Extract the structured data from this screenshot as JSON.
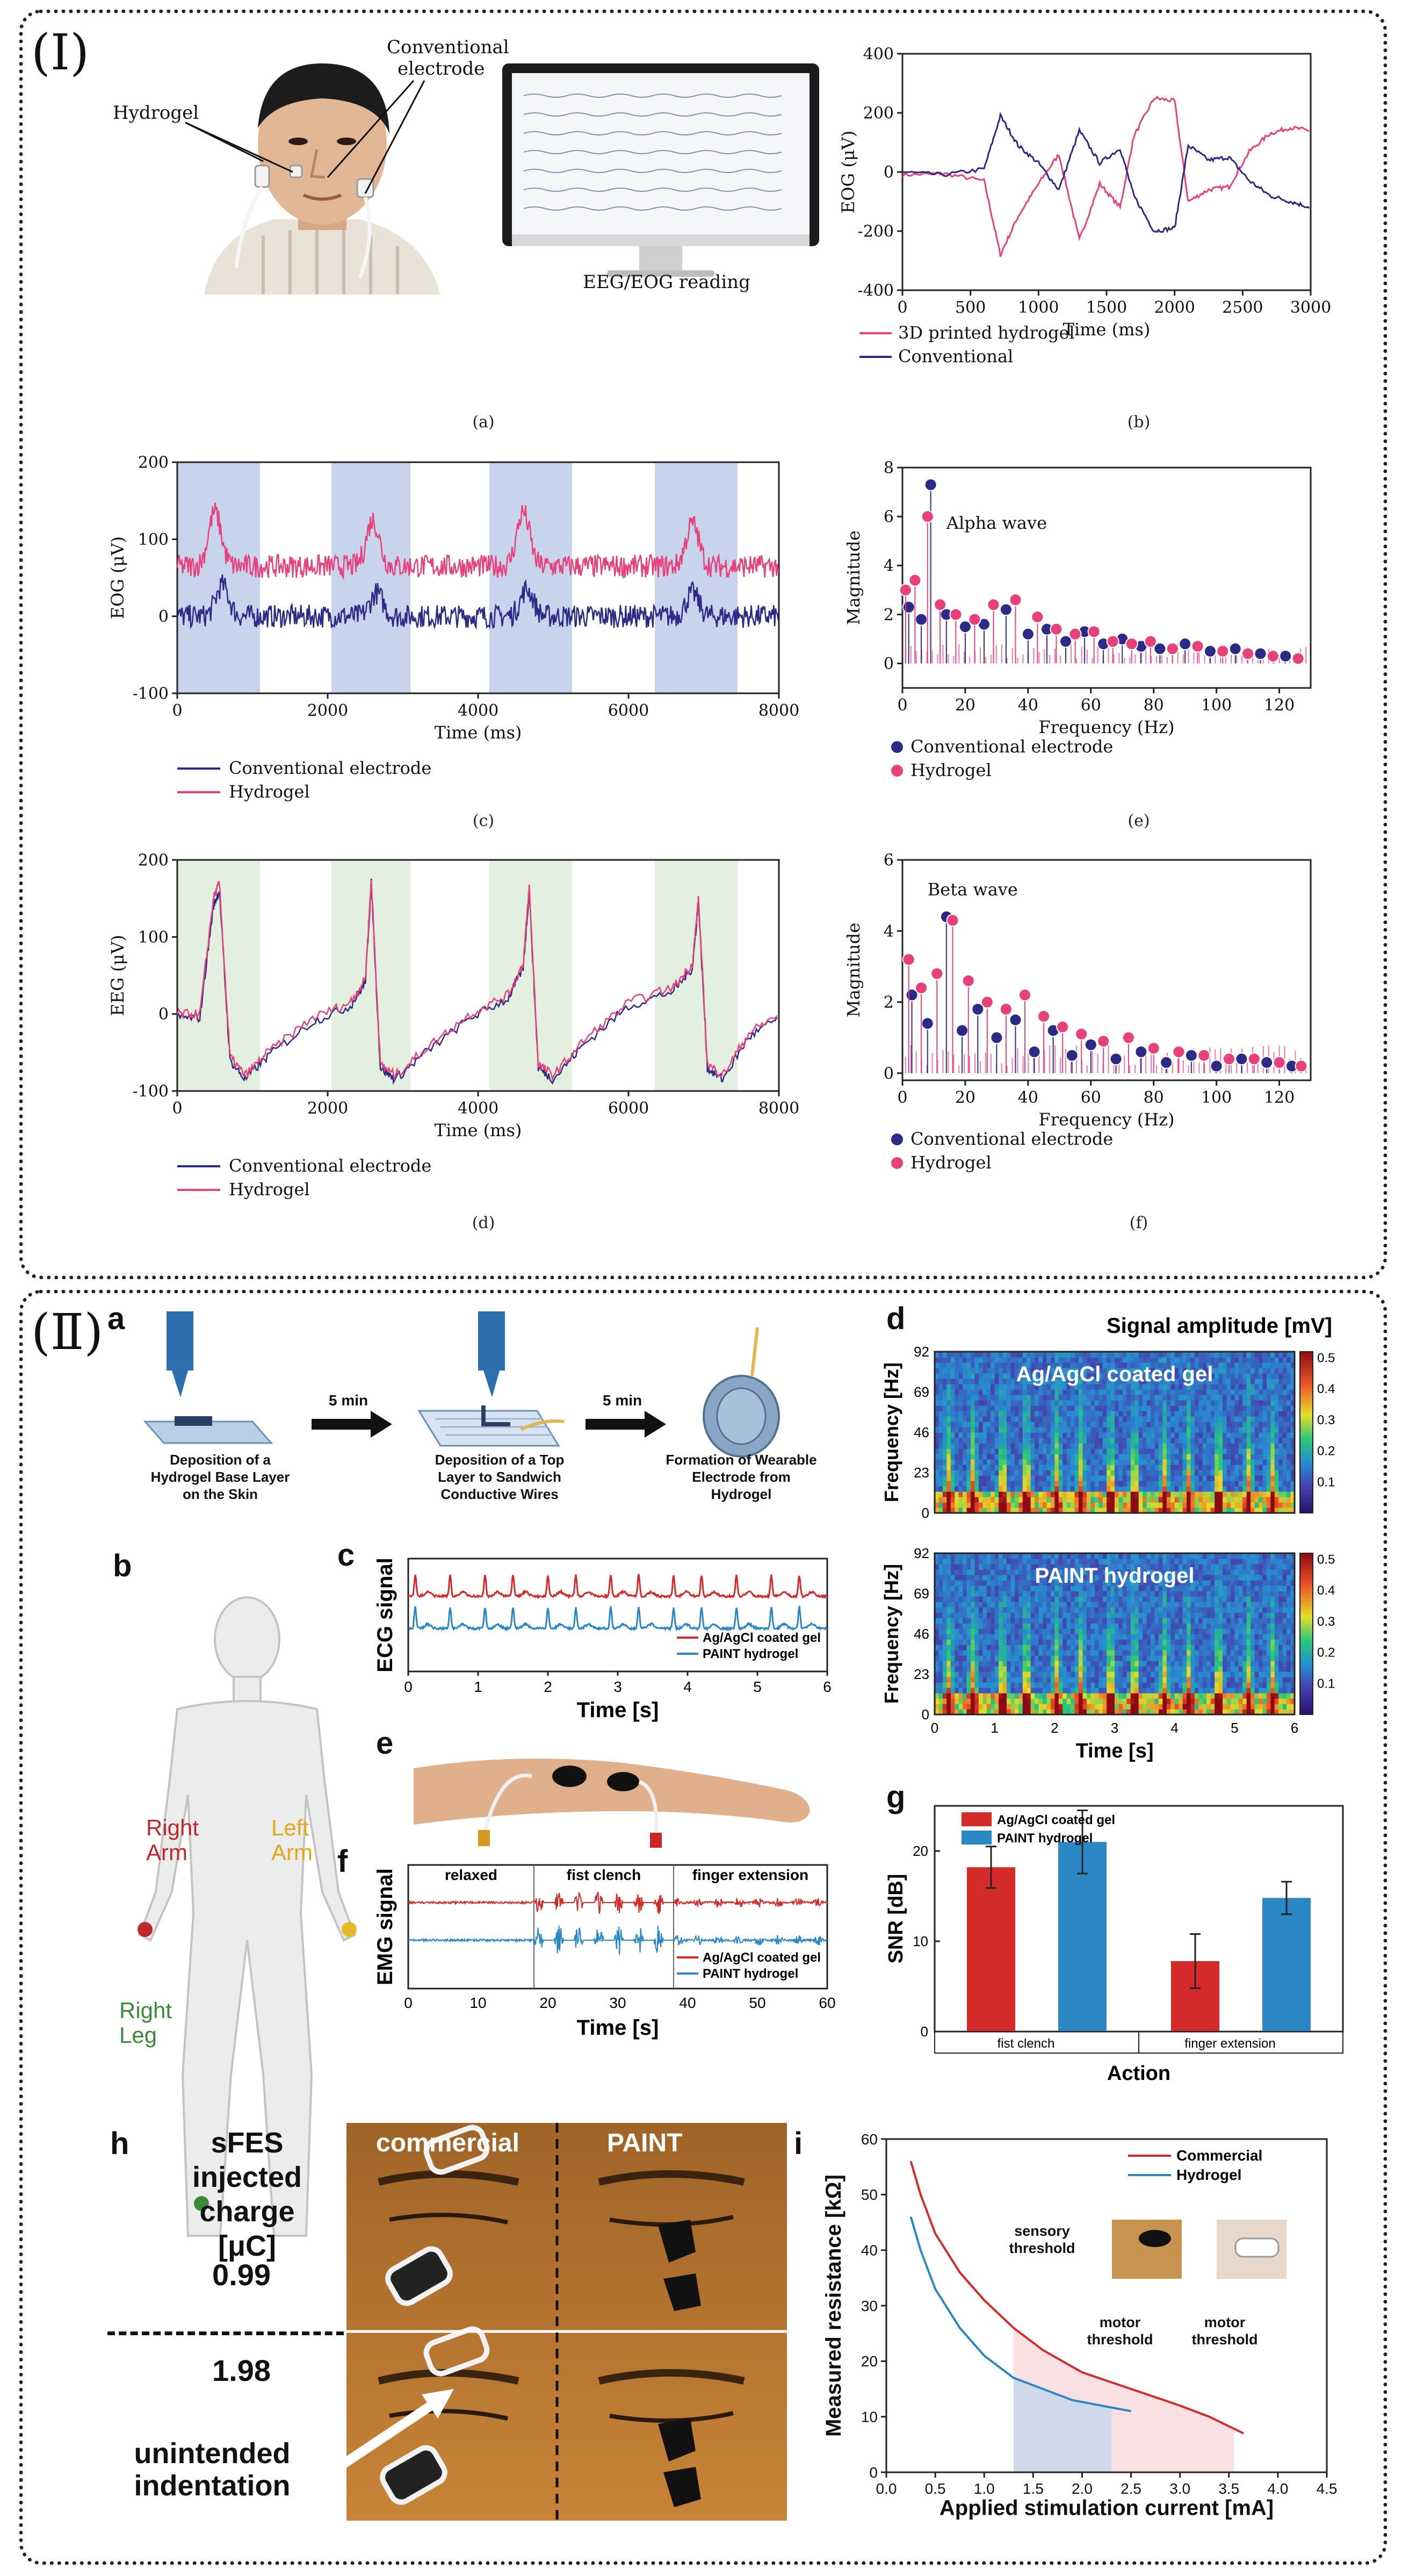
{
  "panel_I": {
    "label": "(Ⅰ)",
    "a": {
      "hydrogel_label": "Hydrogel",
      "conventional_label_1": "Conventional",
      "conventional_label_2": "electrode",
      "monitor_caption": "EEG/EOG reading",
      "caption": "(a)"
    },
    "b": {
      "caption": "(b)"
    },
    "c": {
      "caption": "(c)"
    },
    "d": {
      "caption": "(d)"
    },
    "e": {
      "caption": "(e)"
    },
    "f": {
      "caption": "(f)"
    }
  },
  "panel_II": {
    "label": "(Ⅱ)",
    "a": {
      "letter": "a",
      "arrow1": "5 min",
      "arrow2": "5 min",
      "step1": [
        "Deposition of a",
        "Hydrogel Base Layer",
        "on the Skin"
      ],
      "step2": [
        "Deposition of a Top",
        "Layer to Sandwich",
        "Conductive Wires"
      ],
      "step3": [
        "Formation of Wearable",
        "Electrode from",
        "Hydrogel"
      ]
    },
    "b": {
      "letter": "b",
      "right_arm": [
        "Right",
        "Arm"
      ],
      "left_arm": [
        "Left",
        "Arm"
      ],
      "right_leg": [
        "Right",
        "Leg"
      ]
    },
    "c": {
      "letter": "c"
    },
    "d": {
      "letter": "d",
      "colorbar_title": "Signal amplitude [mV]",
      "top_label": "Ag/AgCl coated gel",
      "bottom_label": "PAINT hydrogel"
    },
    "e": {
      "letter": "e"
    },
    "f": {
      "letter": "f",
      "segments": [
        "relaxed",
        "fist clench",
        "finger extension"
      ]
    },
    "g": {
      "letter": "g"
    },
    "h": {
      "letter": "h",
      "row_title": [
        "sFES",
        "injected",
        "charge [μC]"
      ],
      "col1": "commercial",
      "col2": "PAINT",
      "row1_value": "0.99",
      "row2_value": "1.98",
      "annotation": [
        "unintended",
        "indentation"
      ]
    },
    "i": {
      "letter": "i",
      "sensory": [
        "sensory",
        "threshold"
      ],
      "motor1": [
        "motor",
        "threshold"
      ],
      "motor2": [
        "motor",
        "threshold"
      ]
    }
  },
  "colors": {
    "conventional": "#2b2a86",
    "hydrogel": "#e8407a",
    "agagcl": "#d42a2a",
    "paint": "#2b86c4",
    "blue_band": "#c8d3ec",
    "green_band": "#e3f0e0"
  },
  "chart_data": [
    {
      "id": "I-b",
      "type": "line",
      "xlabel": "Time (ms)",
      "ylabel": "EOG (μV)",
      "xlim": [
        0,
        3000
      ],
      "ylim": [
        -400,
        400
      ],
      "xticks": [
        0,
        500,
        1000,
        1500,
        2000,
        2500,
        3000
      ],
      "yticks": [
        -400,
        -200,
        0,
        200,
        400
      ],
      "legend": [
        "3D printed hydrogel",
        "Conventional"
      ],
      "series": [
        {
          "name": "3D printed hydrogel",
          "x": [
            0,
            300,
            600,
            720,
            850,
            1000,
            1150,
            1300,
            1450,
            1600,
            1700,
            1850,
            2000,
            2100,
            2250,
            2400,
            2550,
            2700,
            2850,
            3000
          ],
          "y": [
            -10,
            -5,
            -30,
            -280,
            -150,
            -40,
            60,
            -230,
            -40,
            -120,
            120,
            250,
            240,
            -100,
            -60,
            -50,
            70,
            130,
            150,
            140
          ]
        },
        {
          "name": "Conventional",
          "x": [
            0,
            300,
            600,
            720,
            850,
            1000,
            1150,
            1300,
            1450,
            1600,
            1700,
            1850,
            2000,
            2100,
            2250,
            2400,
            2550,
            2700,
            2850,
            3000
          ],
          "y": [
            0,
            -10,
            10,
            190,
            90,
            30,
            -60,
            140,
            30,
            80,
            -80,
            -200,
            -190,
            90,
            40,
            50,
            -30,
            -80,
            -100,
            -120
          ]
        }
      ]
    },
    {
      "id": "I-c",
      "type": "line",
      "xlabel": "Time (ms)",
      "ylabel": "EOG (μV)",
      "xlim": [
        0,
        8000
      ],
      "ylim": [
        -100,
        200
      ],
      "xticks": [
        0,
        2000,
        4000,
        6000,
        8000
      ],
      "yticks": [
        -100,
        0,
        100,
        200
      ],
      "bands": [
        [
          0,
          1100
        ],
        [
          2050,
          3100
        ],
        [
          4150,
          5250
        ],
        [
          6350,
          7450
        ]
      ],
      "legend": [
        "Conventional electrode",
        "Hydrogel"
      ],
      "series": [
        {
          "name": "Conventional electrode",
          "baseline": 0,
          "peaks": [
            [
              600,
              40
            ],
            [
              2650,
              30
            ],
            [
              4650,
              35
            ],
            [
              6850,
              30
            ]
          ]
        },
        {
          "name": "Hydrogel",
          "baseline": 65,
          "peaks": [
            [
              500,
              70
            ],
            [
              2600,
              60
            ],
            [
              4600,
              70
            ],
            [
              6850,
              55
            ]
          ]
        }
      ]
    },
    {
      "id": "I-d",
      "type": "line",
      "xlabel": "Time (ms)",
      "ylabel": "EEG (μV)",
      "xlim": [
        0,
        8000
      ],
      "ylim": [
        -100,
        200
      ],
      "xticks": [
        0,
        2000,
        4000,
        6000,
        8000
      ],
      "yticks": [
        -100,
        0,
        100,
        200
      ],
      "bands": [
        [
          0,
          1100
        ],
        [
          2050,
          3100
        ],
        [
          4150,
          5250
        ],
        [
          6350,
          7450
        ]
      ],
      "legend": [
        "Conventional electrode",
        "Hydrogel"
      ],
      "series": [
        {
          "name": "Conventional electrode",
          "x": [
            0,
            300,
            480,
            560,
            700,
            900,
            1200,
            1800,
            2300,
            2500,
            2580,
            2700,
            2900,
            3300,
            3900,
            4400,
            4600,
            4680,
            4800,
            5000,
            5400,
            6000,
            6600,
            6850,
            6930,
            7050,
            7250,
            7600,
            8000
          ],
          "y": [
            -5,
            -5,
            140,
            160,
            -60,
            -85,
            -55,
            -10,
            10,
            40,
            170,
            -70,
            -85,
            -50,
            -5,
            20,
            60,
            160,
            -70,
            -85,
            -40,
            10,
            30,
            60,
            145,
            -70,
            -85,
            -30,
            -5
          ]
        },
        {
          "name": "Hydrogel",
          "x": [
            0,
            300,
            480,
            560,
            700,
            900,
            1200,
            1800,
            2300,
            2500,
            2580,
            2700,
            2900,
            3300,
            3900,
            4400,
            4600,
            4680,
            4800,
            5000,
            5400,
            6000,
            6600,
            6850,
            6930,
            7050,
            7250,
            7600,
            8000
          ],
          "y": [
            0,
            0,
            150,
            170,
            -55,
            -80,
            -50,
            -5,
            15,
            45,
            175,
            -65,
            -80,
            -45,
            0,
            25,
            65,
            165,
            -65,
            -80,
            -35,
            15,
            35,
            65,
            150,
            -65,
            -80,
            -25,
            0
          ]
        }
      ]
    },
    {
      "id": "I-e",
      "type": "scatter",
      "xlabel": "Frequency (Hz)",
      "ylabel": "Magnitude",
      "xlim": [
        0,
        130
      ],
      "ylim": [
        -1,
        8
      ],
      "xticks": [
        0,
        20,
        40,
        60,
        80,
        100,
        120
      ],
      "yticks": [
        0,
        2,
        4,
        6,
        8
      ],
      "annotation": "Alpha wave",
      "legend": [
        "Conventional electrode",
        "Hydrogel"
      ],
      "series": [
        {
          "name": "Conventional electrode",
          "x": [
            2,
            6,
            9,
            14,
            20,
            26,
            33,
            40,
            46,
            52,
            58,
            64,
            70,
            76,
            82,
            90,
            98,
            106,
            114,
            122
          ],
          "y": [
            2.3,
            1.8,
            7.3,
            2.0,
            1.5,
            1.6,
            2.2,
            1.2,
            1.4,
            0.9,
            1.3,
            0.8,
            1.0,
            0.7,
            0.6,
            0.8,
            0.5,
            0.6,
            0.4,
            0.3
          ]
        },
        {
          "name": "Hydrogel",
          "x": [
            1,
            4,
            8,
            12,
            17,
            23,
            29,
            36,
            43,
            49,
            55,
            61,
            67,
            73,
            79,
            86,
            94,
            102,
            110,
            118,
            126
          ],
          "y": [
            3.0,
            3.4,
            6.0,
            2.4,
            2.0,
            1.8,
            2.4,
            2.6,
            1.9,
            1.4,
            1.2,
            1.3,
            0.9,
            0.8,
            0.9,
            0.6,
            0.7,
            0.5,
            0.4,
            0.3,
            0.2
          ]
        }
      ]
    },
    {
      "id": "I-f",
      "type": "scatter",
      "xlabel": "Frequency (Hz)",
      "ylabel": "Magnitude",
      "xlim": [
        0,
        130
      ],
      "ylim": [
        -0.2,
        6
      ],
      "xticks": [
        0,
        20,
        40,
        60,
        80,
        100,
        120
      ],
      "yticks": [
        0,
        2,
        4,
        6
      ],
      "annotation": "Beta wave",
      "legend": [
        "Conventional electrode",
        "Hydrogel"
      ],
      "series": [
        {
          "name": "Conventional electrode",
          "x": [
            3,
            8,
            14,
            19,
            24,
            30,
            36,
            42,
            48,
            54,
            60,
            68,
            76,
            84,
            92,
            100,
            108,
            116,
            124
          ],
          "y": [
            2.2,
            1.4,
            4.4,
            1.2,
            1.8,
            1.0,
            1.5,
            0.6,
            1.2,
            0.5,
            0.8,
            0.4,
            0.6,
            0.3,
            0.5,
            0.2,
            0.4,
            0.3,
            0.2
          ]
        },
        {
          "name": "Hydrogel",
          "x": [
            2,
            6,
            11,
            16,
            21,
            27,
            33,
            39,
            45,
            51,
            57,
            64,
            72,
            80,
            88,
            96,
            104,
            112,
            120,
            127
          ],
          "y": [
            3.2,
            2.4,
            2.8,
            4.3,
            2.6,
            2.0,
            1.8,
            2.2,
            1.6,
            1.3,
            1.1,
            0.9,
            1.0,
            0.7,
            0.6,
            0.5,
            0.4,
            0.4,
            0.3,
            0.2
          ]
        }
      ]
    },
    {
      "id": "II-c",
      "type": "line",
      "xlabel": "Time [s]",
      "ylabel": "ECG signal",
      "xlim": [
        0,
        6
      ],
      "xticks": [
        0,
        1,
        2,
        3,
        4,
        5,
        6
      ],
      "legend": [
        "Ag/AgCl coated gel",
        "PAINT hydrogel"
      ],
      "series": [
        {
          "name": "Ag/AgCl coated gel",
          "beats_s": [
            0.1,
            0.6,
            1.1,
            1.5,
            2.0,
            2.4,
            2.9,
            3.3,
            3.8,
            4.2,
            4.7,
            5.2,
            5.6
          ]
        },
        {
          "name": "PAINT hydrogel",
          "beats_s": [
            0.1,
            0.6,
            1.1,
            1.5,
            2.0,
            2.4,
            2.9,
            3.3,
            3.8,
            4.2,
            4.7,
            5.2,
            5.6
          ]
        }
      ]
    },
    {
      "id": "II-d",
      "type": "heatmap",
      "xlabel": "Time [s]",
      "ylabel": "Frequency [Hz]",
      "xticks": [
        0,
        1,
        2,
        3,
        4,
        5,
        6
      ],
      "yticks": [
        0,
        23,
        46,
        69,
        92
      ],
      "colorbar_ticks": [
        0.1,
        0.2,
        0.3,
        0.4,
        0.5
      ],
      "colorbar_title": "Signal amplitude [mV]",
      "panels": [
        "Ag/AgCl coated gel",
        "PAINT hydrogel"
      ]
    },
    {
      "id": "II-f",
      "type": "line",
      "xlabel": "Time [s]",
      "ylabel": "EMG signal",
      "xlim": [
        0,
        60
      ],
      "xticks": [
        0,
        10,
        20,
        30,
        40,
        50,
        60
      ],
      "dividers": [
        18,
        38
      ],
      "legend": [
        "Ag/AgCl coated gel",
        "PAINT hydrogel"
      ]
    },
    {
      "id": "II-g",
      "type": "bar",
      "xlabel": "Action",
      "ylabel": "SNR [dB]",
      "categories": [
        "fist clench",
        "finger extension"
      ],
      "ylim": [
        0,
        25
      ],
      "yticks": [
        0,
        10,
        20
      ],
      "series": [
        {
          "name": "Ag/AgCl coated gel",
          "values": [
            18.2,
            7.8
          ],
          "errors": [
            2.3,
            3.0
          ]
        },
        {
          "name": "PAINT hydrogel",
          "values": [
            21.0,
            14.8
          ],
          "errors": [
            3.5,
            1.8
          ]
        }
      ]
    },
    {
      "id": "II-i",
      "type": "line",
      "xlabel": "Applied stimulation current [mA]",
      "ylabel": "Measured resistance [kΩ]",
      "xlim": [
        0,
        4.5
      ],
      "ylim": [
        0,
        60
      ],
      "xticks": [
        0.0,
        0.5,
        1.0,
        1.5,
        2.0,
        2.5,
        3.0,
        3.5,
        4.0,
        4.5
      ],
      "yticks": [
        0,
        10,
        20,
        30,
        40,
        50,
        60
      ],
      "legend": [
        "Commercial",
        "Hydrogel"
      ],
      "series": [
        {
          "name": "Commercial",
          "x": [
            0.25,
            0.35,
            0.5,
            0.75,
            1.0,
            1.3,
            1.6,
            2.0,
            2.5,
            3.0,
            3.3,
            3.65
          ],
          "y": [
            56,
            50,
            43,
            36,
            31,
            26,
            22,
            18,
            15,
            12,
            10,
            7
          ]
        },
        {
          "name": "Hydrogel",
          "x": [
            0.25,
            0.35,
            0.5,
            0.75,
            1.0,
            1.3,
            1.6,
            1.9,
            2.2,
            2.5
          ],
          "y": [
            46,
            40,
            33,
            26,
            21,
            17,
            15,
            13,
            12,
            11
          ]
        }
      ]
    }
  ]
}
